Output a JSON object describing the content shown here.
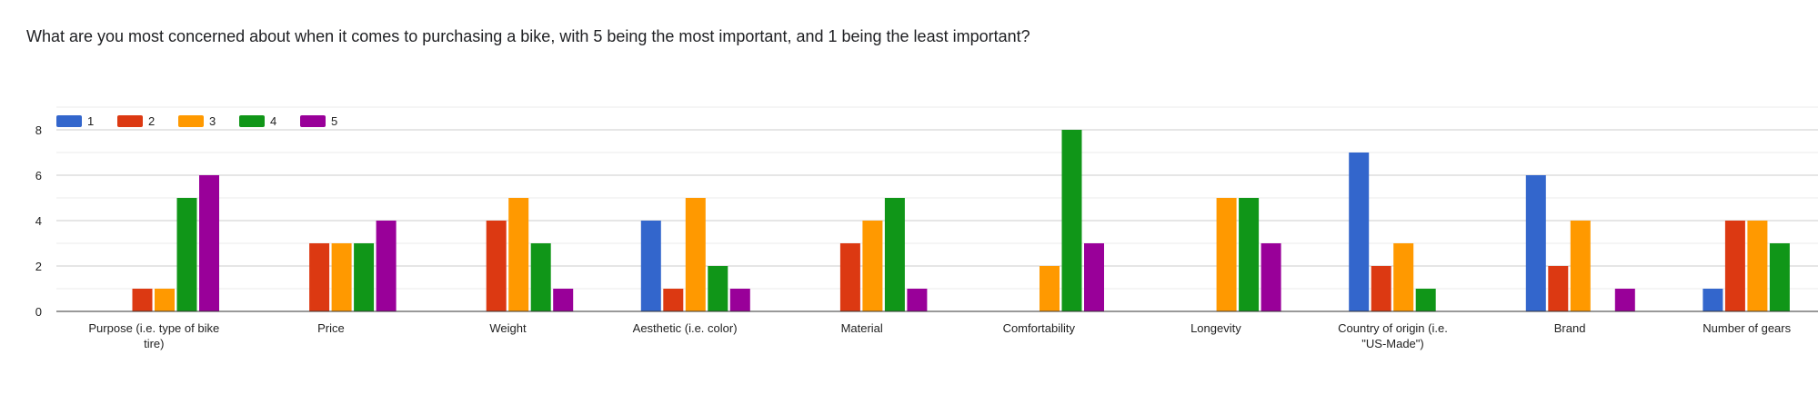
{
  "title": "What are you most concerned about when it comes to purchasing a bike, with 5 being the most important, and 1 being the least important?",
  "chart_data": {
    "type": "bar",
    "title": "What are you most concerned about when it comes to purchasing a bike, with 5 being the most important, and 1 being the least important?",
    "categories": [
      "Purpose (i.e. type of bike tire)",
      "Price",
      "Weight",
      "Aesthetic (i.e. color)",
      "Material",
      "Comfortability",
      "Longevity",
      "Country of origin (i.e. \"US-Made\")",
      "Brand",
      "Number of gears"
    ],
    "series": [
      {
        "name": "1",
        "color": "#3366cc",
        "values": [
          0,
          0,
          0,
          4,
          0,
          0,
          0,
          7,
          6,
          1
        ]
      },
      {
        "name": "2",
        "color": "#dc3912",
        "values": [
          1,
          3,
          4,
          1,
          3,
          0,
          0,
          2,
          2,
          4
        ]
      },
      {
        "name": "3",
        "color": "#ff9900",
        "values": [
          1,
          3,
          5,
          5,
          4,
          2,
          5,
          3,
          4,
          4
        ]
      },
      {
        "name": "4",
        "color": "#109618",
        "values": [
          5,
          3,
          3,
          2,
          5,
          8,
          5,
          1,
          0,
          3
        ]
      },
      {
        "name": "5",
        "color": "#990099",
        "values": [
          6,
          4,
          1,
          1,
          1,
          3,
          3,
          0,
          1,
          0
        ]
      }
    ],
    "yticks": [
      0,
      2,
      4,
      6,
      8
    ],
    "ylim": [
      0,
      9
    ],
    "xlabel": "",
    "ylabel": "",
    "grid": true,
    "legend_position": "top-left"
  }
}
